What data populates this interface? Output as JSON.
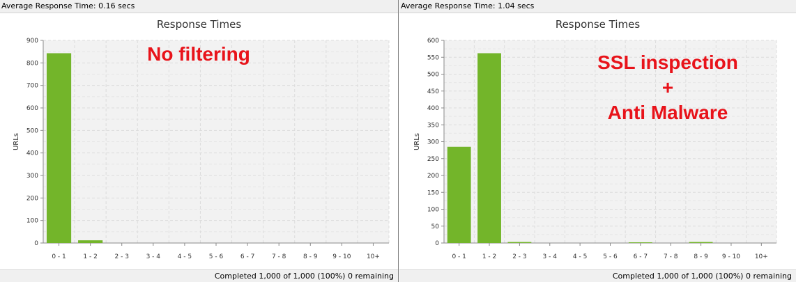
{
  "panels": [
    {
      "header": "Average Response Time: 0.16 secs",
      "status": "Completed 1,000 of 1,000 (100%) 0 remaining",
      "overlay_lines": [
        "No filtering"
      ]
    },
    {
      "header": "Average Response Time: 1.04 secs",
      "status": "Completed 1,000 of 1,000 (100%) 0 remaining",
      "overlay_lines": [
        "SSL inspection",
        "+",
        "Anti Malware"
      ]
    }
  ],
  "colors": {
    "bar": "#73b52a",
    "overlay": "#e8131a",
    "plot_bg": "#f2f2f2",
    "grid": "#dcdcdc"
  },
  "chart_data": [
    {
      "type": "bar",
      "title": "Response Times",
      "ylabel": "URLs",
      "xlabel": "",
      "categories": [
        "0 - 1",
        "1 - 2",
        "2 - 3",
        "3 - 4",
        "4 - 5",
        "5 - 6",
        "6 - 7",
        "7 - 8",
        "8 - 9",
        "9 - 10",
        "10+"
      ],
      "values": [
        843,
        12,
        0,
        0,
        0,
        0,
        0,
        0,
        0,
        0,
        0
      ],
      "ylim": [
        0,
        900
      ],
      "yticks": [
        0,
        100,
        200,
        300,
        400,
        500,
        600,
        700,
        800,
        900
      ],
      "grid": true,
      "legend": "none"
    },
    {
      "type": "bar",
      "title": "Response Times",
      "ylabel": "URLs",
      "xlabel": "",
      "categories": [
        "0 - 1",
        "1 - 2",
        "2 - 3",
        "3 - 4",
        "4 - 5",
        "5 - 6",
        "6 - 7",
        "7 - 8",
        "8 - 9",
        "9 - 10",
        "10+"
      ],
      "values": [
        285,
        562,
        3,
        0,
        0,
        0,
        2,
        0,
        3,
        0,
        0
      ],
      "ylim": [
        0,
        600
      ],
      "yticks": [
        0,
        50,
        100,
        150,
        200,
        250,
        300,
        350,
        400,
        450,
        500,
        550,
        600
      ],
      "grid": true,
      "legend": "none"
    }
  ]
}
